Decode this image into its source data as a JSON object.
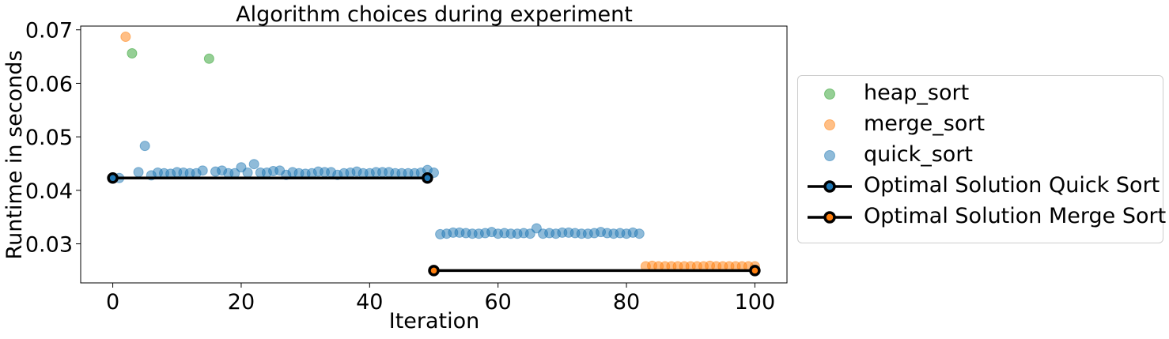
{
  "chart_data": {
    "type": "scatter",
    "title": "Algorithm choices during experiment",
    "xlabel": "Iteration",
    "ylabel": "Runtime in seconds",
    "xlim": [
      -5,
      105
    ],
    "ylim": [
      0.0227,
      0.0707
    ],
    "xticks": [
      0,
      20,
      40,
      60,
      80,
      100
    ],
    "yticks": [
      0.03,
      0.04,
      0.05,
      0.06,
      0.07
    ],
    "xtick_labels": [
      "0",
      "20",
      "40",
      "60",
      "80",
      "100"
    ],
    "ytick_labels": [
      "0.03",
      "0.04",
      "0.05",
      "0.06",
      "0.07"
    ],
    "grid": false,
    "legend_position": "outside-right",
    "series": [
      {
        "name": "heap_sort",
        "color": "#2ca02c",
        "kind": "scatter",
        "x": [
          3,
          15
        ],
        "y": [
          0.0656,
          0.0646
        ]
      },
      {
        "name": "merge_sort",
        "color": "#ff7f0e",
        "kind": "scatter",
        "x": [
          2,
          83,
          84,
          85,
          86,
          87,
          88,
          89,
          90,
          91,
          92,
          93,
          94,
          95,
          96,
          97,
          98,
          99,
          100
        ],
        "y": [
          0.0687,
          0.0258,
          0.0259,
          0.0258,
          0.0258,
          0.0258,
          0.0258,
          0.0258,
          0.0258,
          0.0258,
          0.0258,
          0.0259,
          0.0258,
          0.0258,
          0.0258,
          0.0258,
          0.0258,
          0.0258,
          0.0258
        ]
      },
      {
        "name": "quick_sort",
        "color": "#1f77b4",
        "kind": "scatter",
        "x": [
          1,
          4,
          5,
          6,
          7,
          8,
          9,
          10,
          11,
          12,
          13,
          14,
          16,
          17,
          18,
          19,
          20,
          21,
          22,
          23,
          24,
          25,
          26,
          27,
          28,
          29,
          30,
          31,
          32,
          33,
          34,
          35,
          36,
          37,
          38,
          39,
          40,
          41,
          42,
          43,
          44,
          45,
          46,
          47,
          48,
          49,
          50,
          51,
          52,
          53,
          54,
          55,
          56,
          57,
          58,
          59,
          60,
          61,
          62,
          63,
          64,
          65,
          66,
          67,
          68,
          69,
          70,
          71,
          72,
          73,
          74,
          75,
          76,
          77,
          78,
          79,
          80,
          81,
          82
        ],
        "y": [
          0.0423,
          0.0434,
          0.0483,
          0.0428,
          0.0433,
          0.0432,
          0.0431,
          0.0434,
          0.0433,
          0.0432,
          0.0432,
          0.0437,
          0.0435,
          0.0437,
          0.0432,
          0.0432,
          0.0443,
          0.0433,
          0.0449,
          0.0433,
          0.0433,
          0.0436,
          0.0437,
          0.0429,
          0.0434,
          0.0432,
          0.0431,
          0.0432,
          0.0435,
          0.0434,
          0.0434,
          0.0429,
          0.0432,
          0.0433,
          0.0435,
          0.0432,
          0.0432,
          0.0434,
          0.0434,
          0.0434,
          0.0432,
          0.0432,
          0.0432,
          0.0432,
          0.0433,
          0.0438,
          0.0433,
          0.0318,
          0.0319,
          0.0321,
          0.0321,
          0.032,
          0.0319,
          0.0319,
          0.032,
          0.0322,
          0.0319,
          0.032,
          0.0319,
          0.0319,
          0.032,
          0.0319,
          0.0329,
          0.0319,
          0.032,
          0.0319,
          0.0321,
          0.0321,
          0.032,
          0.0319,
          0.0319,
          0.032,
          0.0322,
          0.032,
          0.0319,
          0.032,
          0.0319,
          0.0321,
          0.0319
        ]
      },
      {
        "name": "Optimal Solution Quick Sort",
        "color": "#000000",
        "marker_face": "#1f77b4",
        "kind": "line",
        "x": [
          0,
          49
        ],
        "y": [
          0.0423,
          0.0423
        ]
      },
      {
        "name": "Optimal Solution Merge Sort",
        "color": "#000000",
        "marker_face": "#ff7f0e",
        "kind": "line",
        "x": [
          50,
          100
        ],
        "y": [
          0.025,
          0.025
        ]
      }
    ]
  }
}
